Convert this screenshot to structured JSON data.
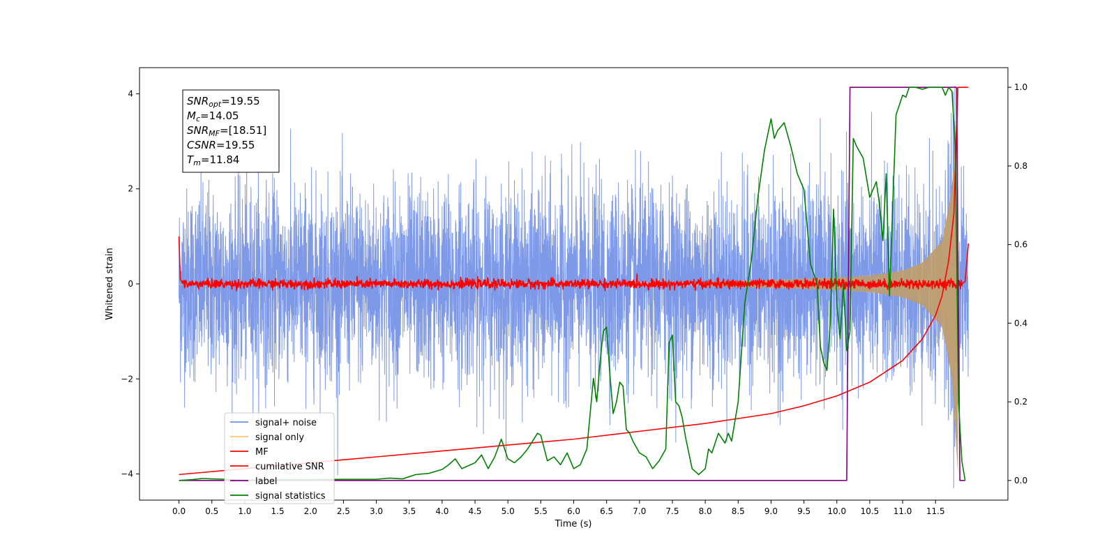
{
  "chart_data": {
    "type": "line",
    "xlabel": "Time (s)",
    "ylabel": "Whitened strain",
    "xlim": [
      -0.6,
      12.6
    ],
    "ylim": [
      -4.55,
      4.55
    ],
    "y2lim": [
      -0.05,
      1.05
    ],
    "x_ticks": [
      0.0,
      0.5,
      1.0,
      1.5,
      2.0,
      2.5,
      3.0,
      3.5,
      4.0,
      4.5,
      5.0,
      5.5,
      6.0,
      6.5,
      7.0,
      7.5,
      8.0,
      8.5,
      9.0,
      9.5,
      10.0,
      10.5,
      11.0,
      11.5
    ],
    "x_tick_labels": [
      "0.0",
      "0.5",
      "1.0",
      "1.5",
      "2.0",
      "2.5",
      "3.0",
      "3.5",
      "4.0",
      "4.5",
      "5.0",
      "5.5",
      "6.0",
      "6.5",
      "7.0",
      "7.5",
      "8.0",
      "8.5",
      "9.0",
      "9.5",
      "10.0",
      "10.5",
      "11.0",
      "11.5"
    ],
    "y_ticks": [
      -4,
      -2,
      0,
      2,
      4
    ],
    "y_tick_labels": [
      "−4",
      "−2",
      "0",
      "2",
      "4"
    ],
    "y2_ticks": [
      0.0,
      0.2,
      0.4,
      0.6,
      0.8,
      1.0
    ],
    "y2_tick_labels": [
      "0.0",
      "0.2",
      "0.4",
      "0.6",
      "0.8",
      "1.0"
    ],
    "grid": false,
    "legend_position": "lower-left",
    "annotation": [
      {
        "sym": "SNR",
        "sub": "opt",
        "val": "=19.55"
      },
      {
        "sym": "M",
        "sub": "c",
        "val": "=14.05"
      },
      {
        "sym": "SNR",
        "sub": "MF",
        "val": "=[18.51]"
      },
      {
        "sym": "CSNR",
        "sub": "",
        "val": "=19.55"
      },
      {
        "sym": "T",
        "sub": "m",
        "val": "=11.84"
      }
    ],
    "series": [
      {
        "name": "signal+ noise",
        "color": "#6f8ee6",
        "axis": "left",
        "description_values": {
          "duration": 12.0,
          "noise_std": 1.0,
          "chirp_end": 11.84
        }
      },
      {
        "name": "signal only",
        "color": "#f5c870",
        "axis": "left",
        "amplitude_envelope": {
          "x": [
            0.0,
            6.0,
            8.0,
            9.0,
            10.0,
            10.5,
            11.0,
            11.3,
            11.6,
            11.75,
            11.84
          ],
          "y": [
            0.02,
            0.03,
            0.05,
            0.08,
            0.13,
            0.17,
            0.28,
            0.45,
            0.9,
            2.0,
            4.0
          ]
        }
      },
      {
        "name": "MF",
        "color": "#ff0000",
        "axis": "left",
        "x": [
          0.0,
          0.02,
          0.06,
          11.9,
          11.95,
          12.0
        ],
        "y": [
          1.0,
          0.1,
          0.0,
          0.0,
          0.05,
          0.85
        ],
        "noise_level": 0.05
      },
      {
        "name": "cumilative SNR",
        "color": "#ff0000",
        "axis": "right",
        "x": [
          0.0,
          1.0,
          2.0,
          3.0,
          4.0,
          5.0,
          6.0,
          7.0,
          8.0,
          9.0,
          9.5,
          10.0,
          10.5,
          11.0,
          11.3,
          11.5,
          11.6,
          11.7,
          11.78,
          11.84,
          12.0
        ],
        "y": [
          0.015,
          0.03,
          0.045,
          0.06,
          0.075,
          0.09,
          0.105,
          0.125,
          0.145,
          0.17,
          0.19,
          0.215,
          0.25,
          0.305,
          0.36,
          0.42,
          0.47,
          0.56,
          0.68,
          1.0,
          1.0
        ]
      },
      {
        "name": "label",
        "color": "#800080",
        "axis": "right",
        "x": [
          0.0,
          10.15,
          10.2,
          11.82,
          11.87,
          11.95
        ],
        "y": [
          0.0,
          0.0,
          1.0,
          1.0,
          0.0,
          0.0
        ]
      },
      {
        "name": "signal statistics",
        "color": "#008000",
        "axis": "right",
        "x": [
          0.0,
          0.2,
          0.35,
          0.5,
          0.7,
          1.0,
          1.5,
          2.0,
          2.5,
          3.0,
          3.2,
          3.4,
          3.6,
          3.8,
          4.0,
          4.1,
          4.2,
          4.3,
          4.5,
          4.6,
          4.7,
          4.8,
          4.9,
          5.0,
          5.1,
          5.2,
          5.3,
          5.45,
          5.5,
          5.6,
          5.65,
          5.7,
          5.8,
          5.9,
          6.0,
          6.1,
          6.2,
          6.3,
          6.35,
          6.4,
          6.45,
          6.5,
          6.55,
          6.6,
          6.65,
          6.7,
          6.75,
          6.8,
          6.85,
          6.9,
          7.0,
          7.1,
          7.2,
          7.3,
          7.4,
          7.45,
          7.5,
          7.55,
          7.6,
          7.65,
          7.7,
          7.8,
          7.9,
          8.0,
          8.05,
          8.1,
          8.2,
          8.3,
          8.35,
          8.4,
          8.5,
          8.6,
          8.7,
          8.8,
          8.9,
          9.0,
          9.05,
          9.1,
          9.2,
          9.3,
          9.4,
          9.5,
          9.6,
          9.7,
          9.75,
          9.8,
          9.85,
          9.9,
          9.95,
          10.0,
          10.05,
          10.1,
          10.15,
          10.2,
          10.25,
          10.3,
          10.4,
          10.5,
          10.6,
          10.65,
          10.7,
          10.75,
          10.8,
          10.9,
          11.0,
          11.05,
          11.1,
          11.2,
          11.3,
          11.4,
          11.5,
          11.6,
          11.65,
          11.7,
          11.75,
          11.8,
          11.82,
          11.85,
          11.9,
          11.95
        ],
        "y": [
          0.0,
          0.002,
          0.005,
          0.004,
          0.003,
          0.001,
          0.002,
          0.002,
          0.003,
          0.003,
          0.006,
          0.004,
          0.015,
          0.018,
          0.028,
          0.04,
          0.055,
          0.03,
          0.045,
          0.065,
          0.03,
          0.06,
          0.105,
          0.055,
          0.045,
          0.06,
          0.08,
          0.12,
          0.115,
          0.05,
          0.055,
          0.06,
          0.04,
          0.07,
          0.03,
          0.04,
          0.08,
          0.26,
          0.2,
          0.3,
          0.38,
          0.39,
          0.27,
          0.17,
          0.2,
          0.25,
          0.24,
          0.13,
          0.12,
          0.1,
          0.07,
          0.06,
          0.03,
          0.05,
          0.08,
          0.35,
          0.37,
          0.2,
          0.19,
          0.16,
          0.11,
          0.03,
          0.015,
          0.03,
          0.08,
          0.07,
          0.12,
          0.095,
          0.12,
          0.1,
          0.2,
          0.45,
          0.56,
          0.72,
          0.84,
          0.92,
          0.87,
          0.89,
          0.91,
          0.85,
          0.78,
          0.74,
          0.55,
          0.5,
          0.34,
          0.3,
          0.28,
          0.4,
          0.69,
          0.45,
          0.36,
          0.5,
          0.33,
          0.38,
          0.87,
          0.85,
          0.82,
          0.72,
          0.76,
          0.7,
          0.61,
          0.78,
          0.47,
          0.93,
          0.98,
          0.975,
          1.0,
          1.0,
          0.995,
          1.0,
          1.0,
          1.0,
          0.98,
          1.0,
          0.99,
          0.85,
          0.6,
          0.2,
          0.05,
          0.0
        ]
      }
    ]
  }
}
